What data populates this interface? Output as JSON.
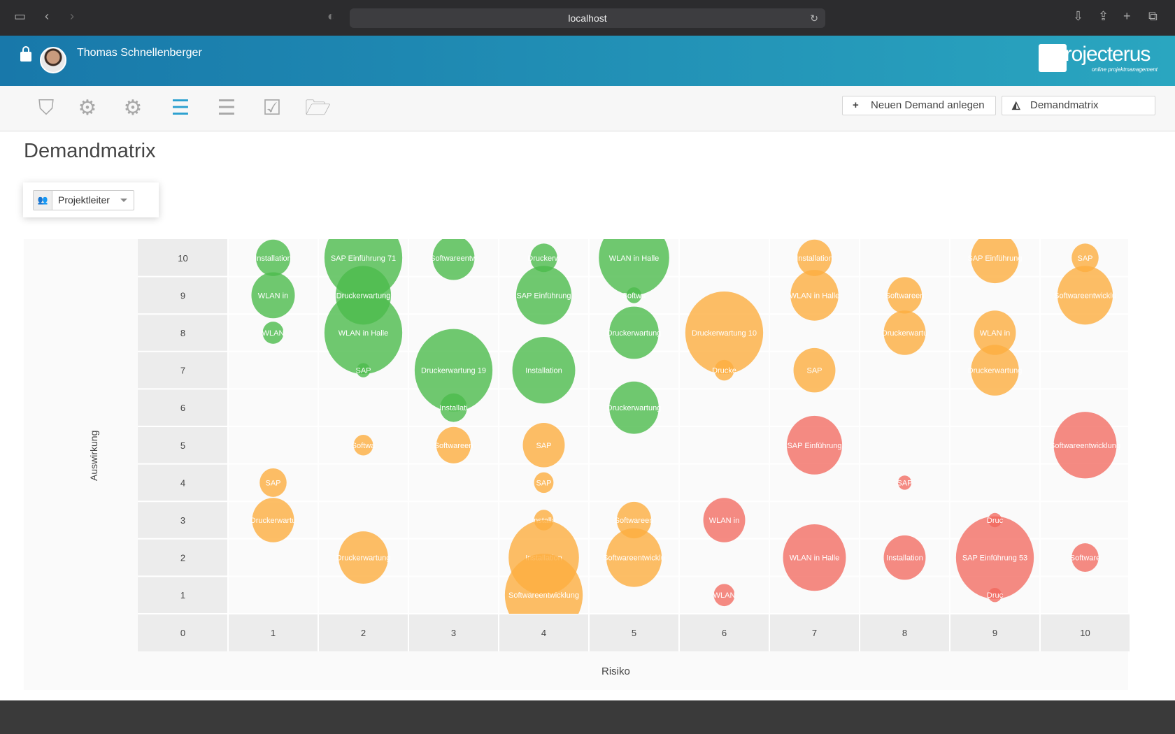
{
  "browser": {
    "url": "localhost"
  },
  "header": {
    "user_name": "Thomas Schnellenberger",
    "logo_text": "projecterus",
    "logo_tagline": "online projektmanagement"
  },
  "toolbar": {
    "icons": [
      "shield-icon",
      "gear-icon",
      "gears-icon",
      "list-icon",
      "server-list-icon",
      "checkbox-icon",
      "folder-open-icon"
    ],
    "new_demand_label": "Neuen Demand anlegen",
    "demandmatrix_label": "Demandmatrix"
  },
  "page": {
    "title": "Demandmatrix",
    "filter_value": "Projektleiter"
  },
  "colors": {
    "green": "#4cbb4c",
    "orange": "#fdae40",
    "red": "#f1645a",
    "header_start": "#1878aa",
    "header_end": "#2aa6c0"
  },
  "chart_data": {
    "type": "bubble",
    "xlabel": "Risiko",
    "ylabel": "Auswirkung",
    "x_ticks": [
      "0",
      "1",
      "2",
      "3",
      "4",
      "5",
      "6",
      "7",
      "8",
      "9",
      "10"
    ],
    "y_ticks": [
      "1",
      "2",
      "3",
      "4",
      "5",
      "6",
      "7",
      "8",
      "9",
      "10"
    ],
    "xlim": [
      0,
      10
    ],
    "ylim": [
      1,
      10
    ],
    "grid": true,
    "points": [
      {
        "x": 1,
        "y": 10,
        "label": "Installation",
        "size": 23,
        "color": "green"
      },
      {
        "x": 1,
        "y": 9,
        "label": "WLAN in",
        "size": 29,
        "color": "green"
      },
      {
        "x": 1,
        "y": 8,
        "label": "WLAN",
        "size": 14,
        "color": "green"
      },
      {
        "x": 2,
        "y": 10,
        "label": "SAP Einführung 71",
        "size": 52,
        "color": "green"
      },
      {
        "x": 2,
        "y": 8,
        "label": "WLAN in Halle",
        "size": 52,
        "color": "green"
      },
      {
        "x": 2,
        "y": 9,
        "label": "Druckerwartung",
        "size": 37,
        "color": "green"
      },
      {
        "x": 2,
        "y": 7,
        "label": "SAP",
        "size": 9,
        "color": "green"
      },
      {
        "x": 3,
        "y": 10,
        "label": "Softwareentw",
        "size": 28,
        "color": "green"
      },
      {
        "x": 3,
        "y": 7,
        "label": "Druckerwartung 19",
        "size": 52,
        "color": "green"
      },
      {
        "x": 3,
        "y": 6,
        "label": "Installati",
        "size": 18,
        "color": "green"
      },
      {
        "x": 4,
        "y": 10,
        "label": "Druckerw",
        "size": 18,
        "color": "green"
      },
      {
        "x": 4,
        "y": 9,
        "label": "SAP Einführung",
        "size": 37,
        "color": "green"
      },
      {
        "x": 4,
        "y": 7,
        "label": "Installation",
        "size": 42,
        "color": "green"
      },
      {
        "x": 5,
        "y": 10,
        "label": "WLAN in Halle",
        "size": 47,
        "color": "green"
      },
      {
        "x": 5,
        "y": 9,
        "label": "Softwa",
        "size": 10,
        "color": "green"
      },
      {
        "x": 5,
        "y": 8,
        "label": "Druckerwartung",
        "size": 33,
        "color": "green"
      },
      {
        "x": 5,
        "y": 6,
        "label": "Druckerwartung",
        "size": 33,
        "color": "green"
      },
      {
        "x": 2,
        "y": 5,
        "label": "Softwa",
        "size": 13,
        "color": "orange"
      },
      {
        "x": 3,
        "y": 5,
        "label": "Softwareen",
        "size": 23,
        "color": "orange"
      },
      {
        "x": 4,
        "y": 5,
        "label": "SAP",
        "size": 28,
        "color": "orange"
      },
      {
        "x": 1,
        "y": 4,
        "label": "SAP",
        "size": 18,
        "color": "orange"
      },
      {
        "x": 4,
        "y": 4,
        "label": "SAP",
        "size": 13,
        "color": "orange"
      },
      {
        "x": 1,
        "y": 3,
        "label": "Druckerwartu",
        "size": 28,
        "color": "orange"
      },
      {
        "x": 4,
        "y": 3,
        "label": "Installa",
        "size": 13,
        "color": "orange"
      },
      {
        "x": 5,
        "y": 3,
        "label": "Softwareen",
        "size": 23,
        "color": "orange"
      },
      {
        "x": 2,
        "y": 2,
        "label": "Druckerwartung",
        "size": 33,
        "color": "orange"
      },
      {
        "x": 4,
        "y": 2,
        "label": "Installation",
        "size": 47,
        "color": "orange"
      },
      {
        "x": 5,
        "y": 2,
        "label": "Softwareentwicklu",
        "size": 37,
        "color": "orange"
      },
      {
        "x": 4,
        "y": 1,
        "label": "Softwareentwicklung",
        "size": 52,
        "color": "orange"
      },
      {
        "x": 6,
        "y": 8,
        "label": "Druckerwartung 10",
        "size": 52,
        "color": "orange"
      },
      {
        "x": 6,
        "y": 7,
        "label": "Drucke",
        "size": 13,
        "color": "orange"
      },
      {
        "x": 7,
        "y": 10,
        "label": "Installation",
        "size": 23,
        "color": "orange"
      },
      {
        "x": 7,
        "y": 9,
        "label": "WLAN in Halle",
        "size": 32,
        "color": "orange"
      },
      {
        "x": 7,
        "y": 7,
        "label": "SAP",
        "size": 28,
        "color": "orange"
      },
      {
        "x": 8,
        "y": 9,
        "label": "Softwareen",
        "size": 23,
        "color": "orange"
      },
      {
        "x": 8,
        "y": 8,
        "label": "Druckerwartu",
        "size": 28,
        "color": "orange"
      },
      {
        "x": 9,
        "y": 10,
        "label": "SAP Einführung",
        "size": 32,
        "color": "orange"
      },
      {
        "x": 9,
        "y": 8,
        "label": "WLAN in",
        "size": 28,
        "color": "orange"
      },
      {
        "x": 9,
        "y": 7,
        "label": "Druckerwartung",
        "size": 32,
        "color": "orange"
      },
      {
        "x": 10,
        "y": 10,
        "label": "SAP",
        "size": 18,
        "color": "orange"
      },
      {
        "x": 10,
        "y": 9,
        "label": "Softwareentwicklu",
        "size": 37,
        "color": "orange"
      },
      {
        "x": 7,
        "y": 5,
        "label": "SAP Einführung",
        "size": 37,
        "color": "red"
      },
      {
        "x": 10,
        "y": 5,
        "label": "Softwareentwicklung",
        "size": 42,
        "color": "red"
      },
      {
        "x": 8,
        "y": 4,
        "label": "SAP",
        "size": 9,
        "color": "red"
      },
      {
        "x": 6,
        "y": 3,
        "label": "WLAN in",
        "size": 28,
        "color": "red"
      },
      {
        "x": 7,
        "y": 2,
        "label": "WLAN in Halle",
        "size": 42,
        "color": "red"
      },
      {
        "x": 8,
        "y": 2,
        "label": "Installation",
        "size": 28,
        "color": "red"
      },
      {
        "x": 9,
        "y": 2,
        "label": "SAP Einführung 53",
        "size": 52,
        "color": "red"
      },
      {
        "x": 9,
        "y": 3,
        "label": "Druc",
        "size": 9,
        "color": "red"
      },
      {
        "x": 9,
        "y": 1,
        "label": "Druc",
        "size": 9,
        "color": "red"
      },
      {
        "x": 10,
        "y": 2,
        "label": "Software",
        "size": 18,
        "color": "red"
      },
      {
        "x": 6,
        "y": 1,
        "label": "WLAN",
        "size": 14,
        "color": "red"
      }
    ]
  }
}
